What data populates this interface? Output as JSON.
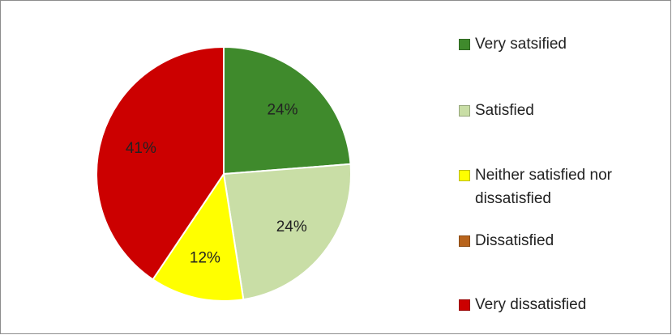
{
  "chart_data": {
    "type": "pie",
    "categories": [
      "Very satsified",
      "Satisfied",
      "Neither satisfied nor dissatisfied",
      "Dissatisfied",
      "Very dissatisfied"
    ],
    "values": [
      24,
      24,
      12,
      0,
      41
    ],
    "value_labels": [
      "24%",
      "24%",
      "12%",
      null,
      "41%"
    ],
    "colors": [
      "#3f8a2c",
      "#c9dea6",
      "#ffff00",
      "#b8641c",
      "#cc0000"
    ],
    "legend": "right"
  }
}
